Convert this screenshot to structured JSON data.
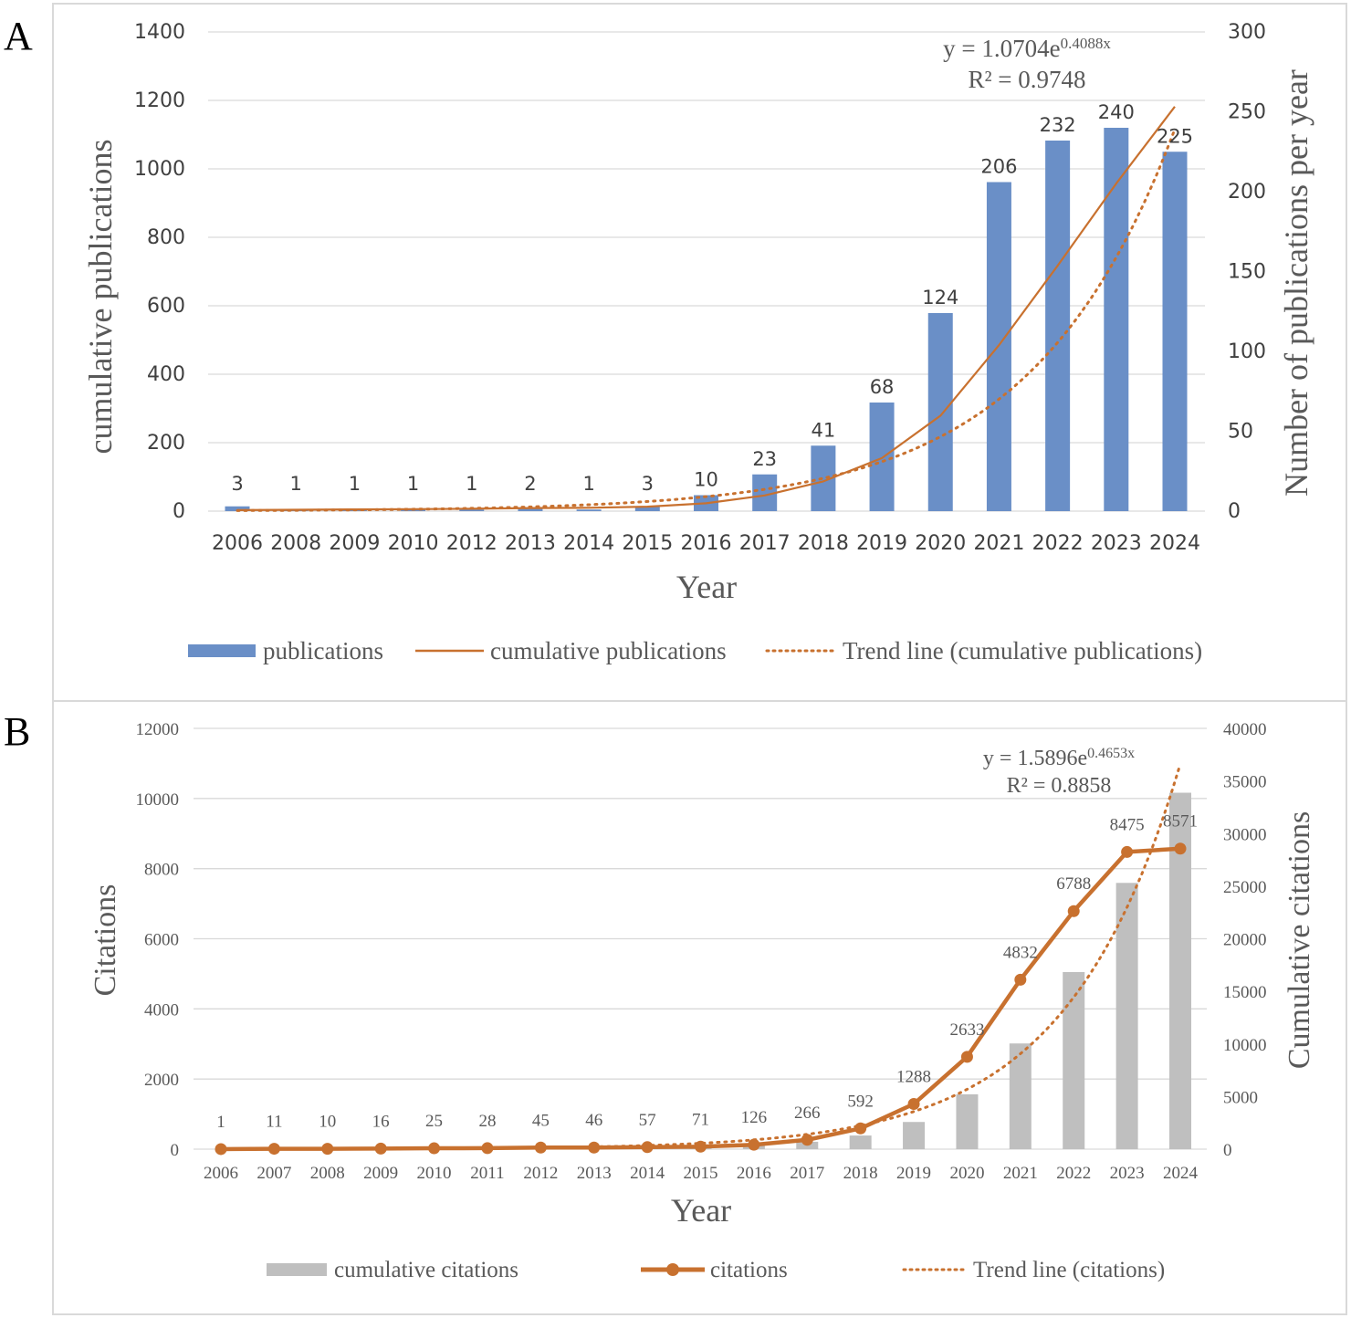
{
  "chart_data": [
    {
      "panel_label": "A",
      "type": "bar+line",
      "categories": [
        "2006",
        "2008",
        "2009",
        "2010",
        "2012",
        "2013",
        "2014",
        "2015",
        "2016",
        "2017",
        "2018",
        "2019",
        "2020",
        "2021",
        "2022",
        "2023",
        "2024"
      ],
      "series": [
        {
          "name": "publications",
          "type": "bar",
          "axis": "right",
          "values": [
            3,
            1,
            1,
            1,
            1,
            2,
            1,
            3,
            10,
            23,
            41,
            68,
            124,
            206,
            232,
            240,
            225
          ],
          "color": "#6a8fc7"
        },
        {
          "name": "cumulative publications",
          "type": "line",
          "axis": "left",
          "values": [
            3,
            4,
            5,
            6,
            7,
            9,
            10,
            13,
            23,
            46,
            87,
            155,
            279,
            485,
            717,
            957,
            1182
          ],
          "color": "#c8712f"
        },
        {
          "name": "Trend line (cumulative publications)",
          "type": "trend-exp",
          "axis": "left",
          "a": 1.0704,
          "b": 0.4088,
          "color": "#c8712f"
        }
      ],
      "equation": {
        "main": "y = 1.0704e",
        "exp": "0.4088x",
        "r2": "R² = 0.9748"
      },
      "xlabel": "Year",
      "ylabel": "cumulative publications",
      "y2label": "Number of publications per year",
      "ylim": [
        0,
        1400
      ],
      "yticks": [
        "0",
        "200",
        "400",
        "600",
        "800",
        "1000",
        "1200",
        "1400"
      ],
      "y2lim": [
        0,
        300
      ],
      "y2ticks": [
        "0",
        "50",
        "100",
        "150",
        "200",
        "250",
        "300"
      ],
      "legend": [
        "publications",
        "cumulative publications",
        "Trend line (cumulative publications)"
      ],
      "legend_position": "bottom"
    },
    {
      "panel_label": "B",
      "type": "bar+line",
      "categories": [
        "2006",
        "2007",
        "2008",
        "2009",
        "2010",
        "2011",
        "2012",
        "2013",
        "2014",
        "2015",
        "2016",
        "2017",
        "2018",
        "2019",
        "2020",
        "2021",
        "2022",
        "2023",
        "2024"
      ],
      "series": [
        {
          "name": "cumulative citations",
          "type": "bar",
          "axis": "right",
          "values": [
            1,
            12,
            22,
            38,
            63,
            91,
            136,
            182,
            239,
            310,
            436,
            702,
            1294,
            2582,
            5215,
            10047,
            16835,
            25310,
            33881
          ],
          "color": "#bfbfbf"
        },
        {
          "name": "citations",
          "type": "line",
          "axis": "left",
          "values": [
            1,
            11,
            10,
            16,
            25,
            28,
            45,
            46,
            57,
            71,
            126,
            266,
            592,
            1288,
            2633,
            4832,
            6788,
            8475,
            8571
          ],
          "color": "#c8712f"
        },
        {
          "name": "Trend line (citations)",
          "type": "trend-exp",
          "axis": "left",
          "a": 1.5896,
          "b": 0.4653,
          "color": "#c8712f"
        }
      ],
      "equation": {
        "main": "y = 1.5896e",
        "exp": "0.4653x",
        "r2": "R² = 0.8858"
      },
      "xlabel": "Year",
      "ylabel": "Citations",
      "y2label": "Cumulative citations",
      "ylim": [
        0,
        12000
      ],
      "yticks": [
        "0",
        "2000",
        "4000",
        "6000",
        "8000",
        "10000",
        "12000"
      ],
      "y2lim": [
        0,
        40000
      ],
      "y2ticks": [
        "0",
        "5000",
        "10000",
        "15000",
        "20000",
        "25000",
        "30000",
        "35000",
        "40000"
      ],
      "legend": [
        "cumulative citations",
        "citations",
        "Trend line (citations)"
      ],
      "legend_position": "bottom"
    }
  ]
}
